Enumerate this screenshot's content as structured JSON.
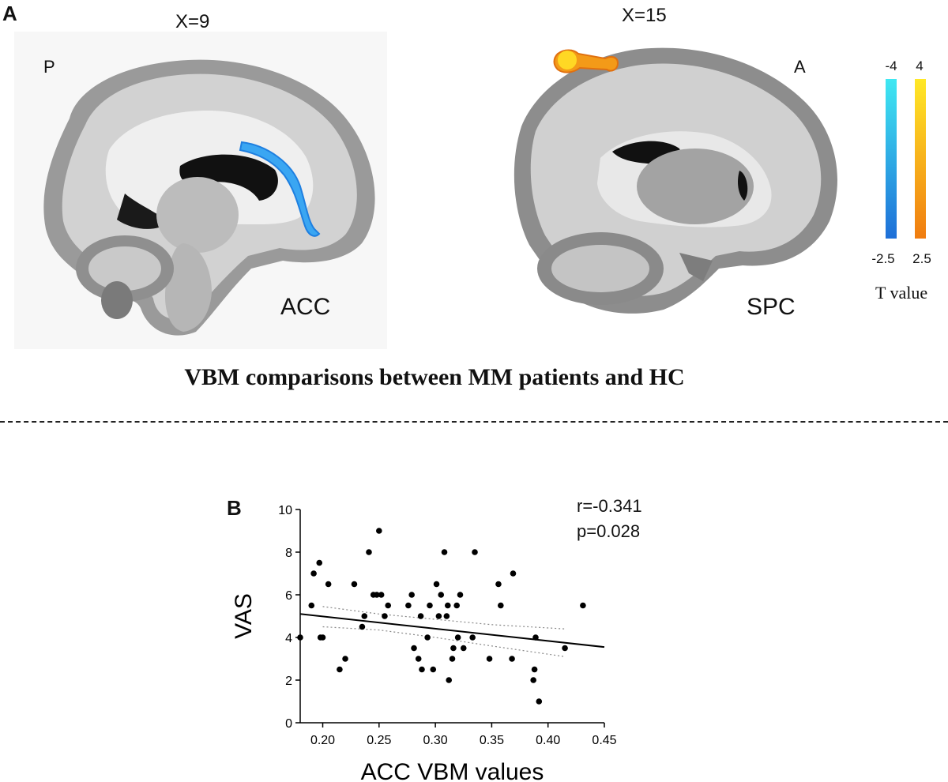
{
  "panel_a": {
    "letter": "A",
    "left_slice": {
      "coordinate_label": "X=9",
      "orientation_label": "P",
      "region_label": "ACC"
    },
    "right_slice": {
      "coordinate_label": "X=15",
      "orientation_label": "A",
      "region_label": "SPC"
    },
    "colorbar": {
      "negative_top": "-4",
      "negative_bottom": "-2.5",
      "positive_top": "4",
      "positive_bottom": "2.5",
      "title": "T value",
      "negative_colors": [
        "#3fe8f2",
        "#1e6fd8"
      ],
      "positive_colors": [
        "#ffe827",
        "#f07c10"
      ]
    },
    "heading": "VBM comparisons between MM patients and HC"
  },
  "panel_b": {
    "letter": "B",
    "stats": {
      "r": "r=-0.341",
      "p": "p=0.028"
    }
  },
  "chart_data": {
    "type": "scatter",
    "title": "",
    "xlabel": "ACC VBM values",
    "ylabel": "VAS",
    "xlim": [
      0.18,
      0.45
    ],
    "ylim": [
      0,
      10
    ],
    "xticks": [
      "0.20",
      "0.25",
      "0.30",
      "0.35",
      "0.40",
      "0.45"
    ],
    "yticks": [
      "0",
      "2",
      "4",
      "6",
      "8",
      "10"
    ],
    "points": [
      [
        0.18,
        4.0
      ],
      [
        0.19,
        5.5
      ],
      [
        0.192,
        7.0
      ],
      [
        0.197,
        7.5
      ],
      [
        0.198,
        4.0
      ],
      [
        0.2,
        4.0
      ],
      [
        0.205,
        6.5
      ],
      [
        0.215,
        2.5
      ],
      [
        0.22,
        3.0
      ],
      [
        0.228,
        6.5
      ],
      [
        0.235,
        4.5
      ],
      [
        0.237,
        5.0
      ],
      [
        0.241,
        8.0
      ],
      [
        0.245,
        6.0
      ],
      [
        0.248,
        6.0
      ],
      [
        0.25,
        9.0
      ],
      [
        0.252,
        6.0
      ],
      [
        0.255,
        5.0
      ],
      [
        0.258,
        5.5
      ],
      [
        0.276,
        5.5
      ],
      [
        0.279,
        6.0
      ],
      [
        0.281,
        3.5
      ],
      [
        0.285,
        3.0
      ],
      [
        0.287,
        5.0
      ],
      [
        0.288,
        2.5
      ],
      [
        0.293,
        4.0
      ],
      [
        0.295,
        5.5
      ],
      [
        0.298,
        2.5
      ],
      [
        0.301,
        6.5
      ],
      [
        0.303,
        5.0
      ],
      [
        0.305,
        6.0
      ],
      [
        0.308,
        8.0
      ],
      [
        0.31,
        5.0
      ],
      [
        0.311,
        5.5
      ],
      [
        0.312,
        2.0
      ],
      [
        0.315,
        3.0
      ],
      [
        0.316,
        3.5
      ],
      [
        0.319,
        5.5
      ],
      [
        0.32,
        4.0
      ],
      [
        0.322,
        6.0
      ],
      [
        0.325,
        3.5
      ],
      [
        0.333,
        4.0
      ],
      [
        0.335,
        8.0
      ],
      [
        0.348,
        3.0
      ],
      [
        0.356,
        6.5
      ],
      [
        0.358,
        5.5
      ],
      [
        0.368,
        3.0
      ],
      [
        0.369,
        7.0
      ],
      [
        0.387,
        2.0
      ],
      [
        0.388,
        2.5
      ],
      [
        0.389,
        4.0
      ],
      [
        0.392,
        1.0
      ],
      [
        0.415,
        3.5
      ],
      [
        0.431,
        5.5
      ]
    ],
    "fit_line": {
      "x": [
        0.18,
        0.45
      ],
      "y": [
        5.1,
        3.55
      ]
    },
    "confidence_band": {
      "x": [
        0.2,
        0.25,
        0.3,
        0.35,
        0.415
      ],
      "upper": [
        5.45,
        5.1,
        4.85,
        4.6,
        4.4
      ],
      "lower": [
        4.5,
        4.35,
        4.0,
        3.6,
        3.1
      ]
    },
    "grid": false,
    "legend": "none"
  }
}
